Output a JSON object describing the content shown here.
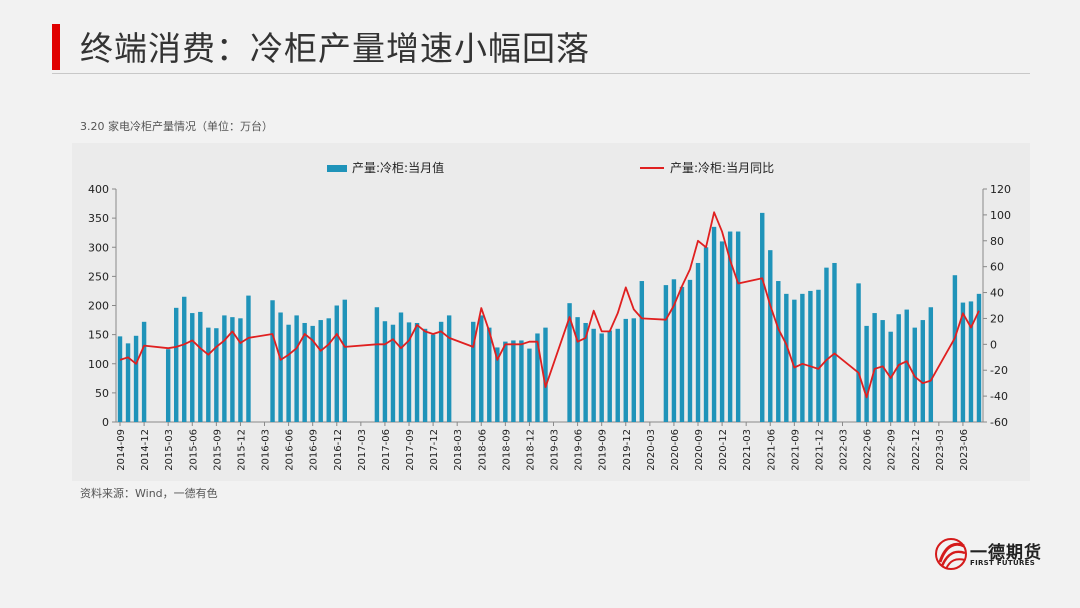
{
  "slide": {
    "title": "终端消费：冷柜产量增速小幅回落",
    "source": "资料来源：Wind，一德有色"
  },
  "logo": {
    "name_cn": "一德期货",
    "name_en": "FIRST FUTURES"
  },
  "chart_data": {
    "type": "bar+line",
    "title": "3.20 家电冷柜产量情况（单位：万台）",
    "legend_position": "top",
    "grid": false,
    "colors": {
      "bar": "#1f93b9",
      "line": "#e02020"
    },
    "y_left": {
      "min": 0,
      "max": 400,
      "ticks": [
        0,
        50,
        100,
        150,
        200,
        250,
        300,
        350,
        400
      ]
    },
    "y_right": {
      "min": -60,
      "max": 120,
      "ticks": [
        -60,
        -40,
        -20,
        0,
        20,
        40,
        60,
        80,
        100,
        120
      ]
    },
    "x_tick_labels": [
      "2014-09",
      "2014-12",
      "2015-03",
      "2015-06",
      "2015-09",
      "2015-12",
      "2016-03",
      "2016-06",
      "2016-09",
      "2016-12",
      "2017-03",
      "2017-06",
      "2017-09",
      "2017-12",
      "2018-03",
      "2018-06",
      "2018-09",
      "2018-12",
      "2019-03",
      "2019-06",
      "2019-09",
      "2019-12",
      "2020-03",
      "2020-06",
      "2020-09",
      "2020-12",
      "2021-03",
      "2021-06",
      "2021-09",
      "2021-12",
      "2022-03",
      "2022-06",
      "2022-09",
      "2022-12",
      "2023-03",
      "2023-06"
    ],
    "x_start": "2014-09",
    "series": [
      {
        "name": "产量:冷柜:当月值",
        "type": "bar",
        "axis": "left",
        "values": [
          147,
          135,
          148,
          172,
          null,
          null,
          125,
          196,
          215,
          187,
          189,
          162,
          161,
          183,
          180,
          178,
          217,
          null,
          null,
          209,
          188,
          167,
          183,
          170,
          165,
          175,
          178,
          200,
          210,
          null,
          null,
          null,
          197,
          173,
          167,
          188,
          171,
          170,
          160,
          150,
          172,
          183,
          null,
          null,
          172,
          183,
          162,
          128,
          138,
          140,
          140,
          126,
          152,
          162,
          null,
          null,
          204,
          180,
          170,
          160,
          152,
          157,
          160,
          177,
          178,
          242,
          null,
          null,
          235,
          245,
          232,
          244,
          273,
          300,
          335,
          310,
          327,
          327,
          null,
          null,
          359,
          295,
          242,
          220,
          210,
          220,
          225,
          227,
          265,
          273,
          null,
          null,
          238,
          165,
          187,
          175,
          155,
          185,
          193,
          162,
          175,
          197,
          null,
          null,
          252,
          205,
          207,
          220
        ]
      },
      {
        "name": "产量:冷柜:当月同比",
        "type": "line",
        "axis": "right",
        "values": [
          -12,
          -10,
          -15,
          -1,
          null,
          null,
          -3,
          -2,
          0,
          3,
          -3,
          -8,
          -2,
          3,
          10,
          1,
          5,
          null,
          null,
          8,
          -12,
          -8,
          -3,
          8,
          3,
          -5,
          0,
          8,
          -2,
          null,
          null,
          null,
          0,
          0,
          4,
          -3,
          3,
          15,
          10,
          8,
          10,
          5,
          null,
          null,
          -2,
          28,
          10,
          -12,
          0,
          0,
          0,
          2,
          2,
          -33,
          null,
          null,
          21,
          2,
          5,
          26,
          10,
          10,
          24,
          44,
          27,
          20,
          null,
          null,
          19,
          30,
          45,
          58,
          80,
          75,
          102,
          87,
          65,
          47,
          null,
          null,
          51,
          30,
          12,
          0,
          -18,
          -15,
          -17,
          -19,
          -12,
          -7,
          null,
          null,
          -22,
          -41,
          -19,
          -17,
          -26,
          -16,
          -13,
          -25,
          -30,
          -28,
          null,
          null,
          5,
          24,
          13,
          26
        ]
      }
    ]
  }
}
